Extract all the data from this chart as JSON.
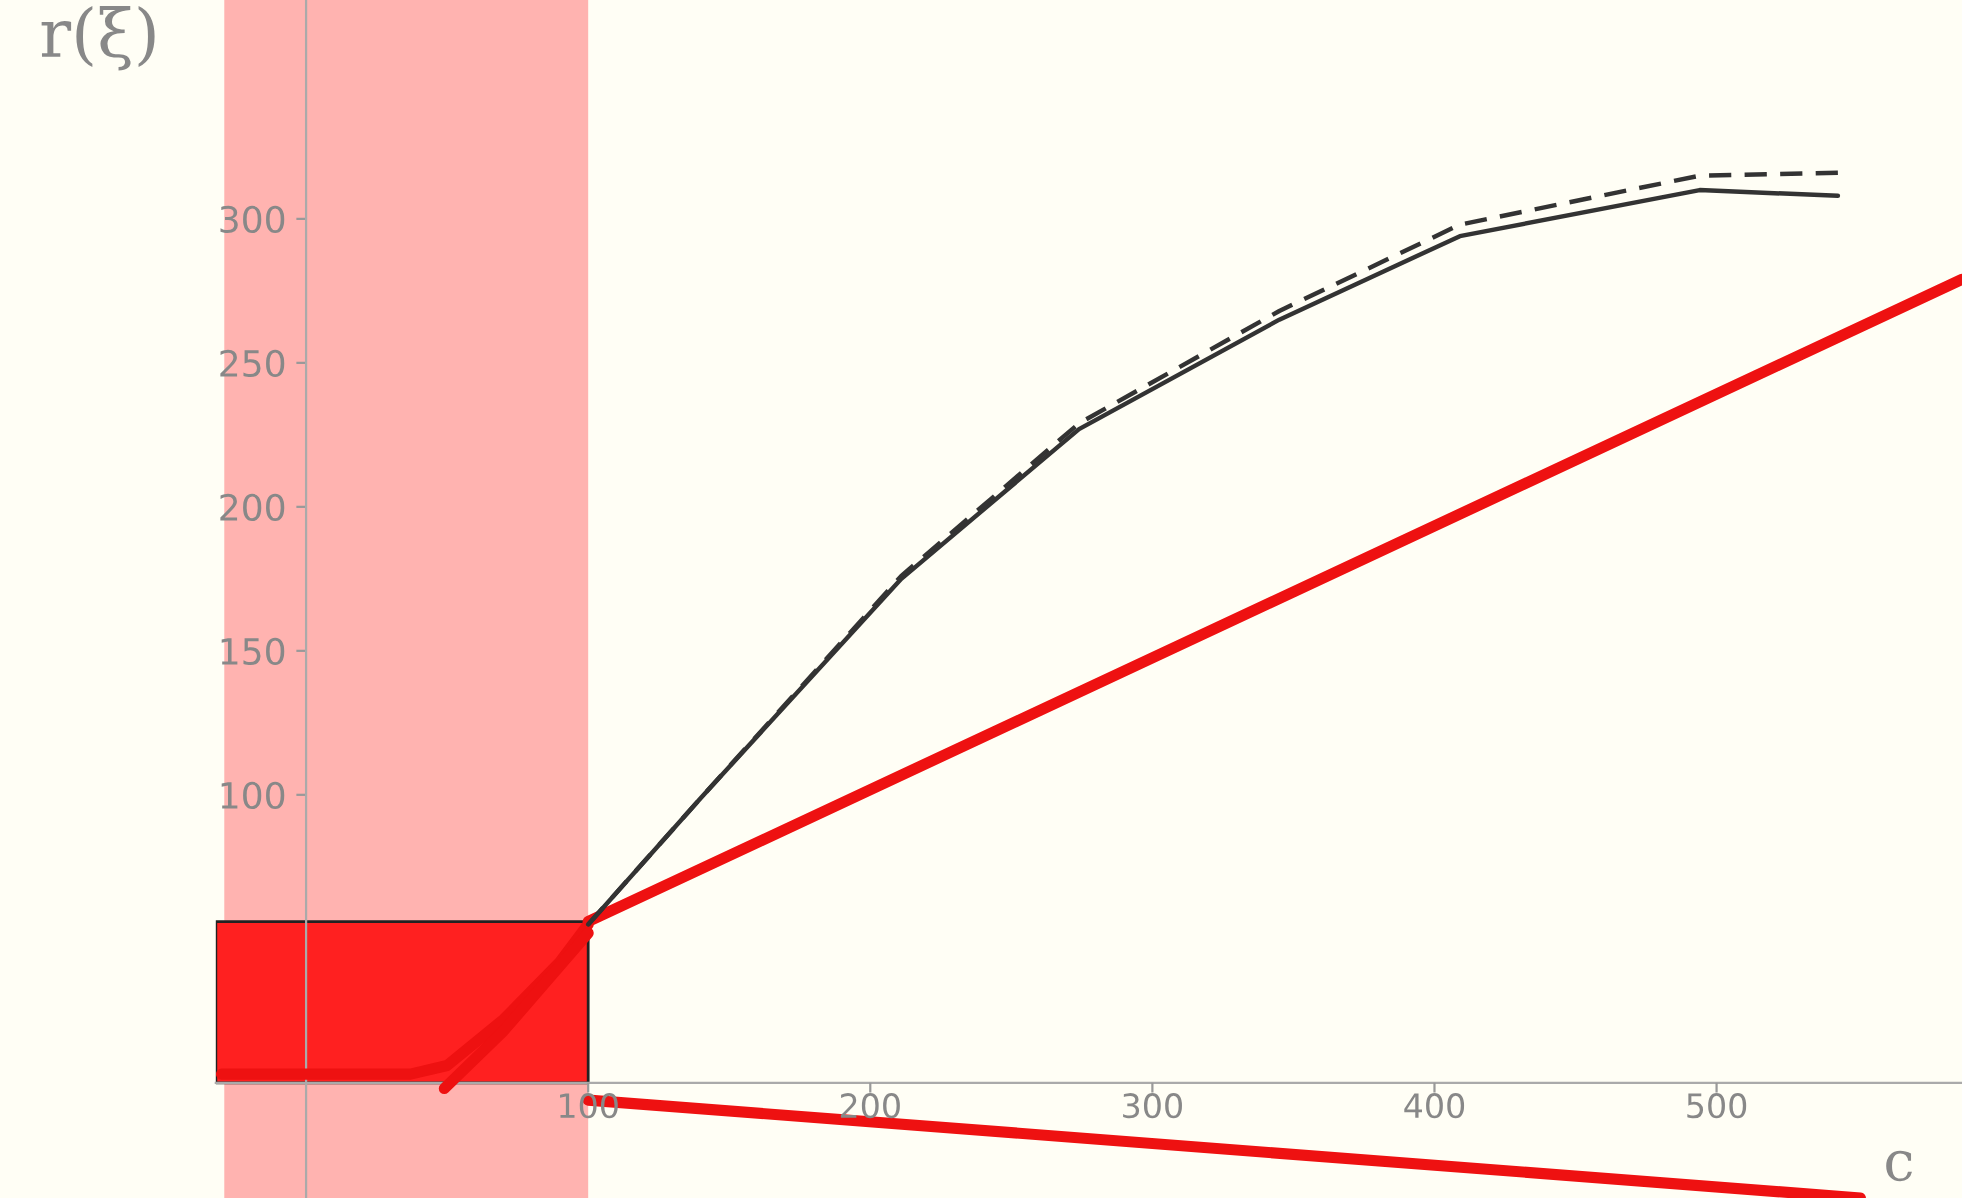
{
  "chart_data": {
    "type": "line",
    "ylabel": "r(ξ)",
    "xlabel": "c",
    "xlim": [
      -32,
      587
    ],
    "ylim": [
      -40,
      376
    ],
    "xticks": [
      100,
      200,
      300,
      400,
      500
    ],
    "yticks": [
      100,
      150,
      200,
      250,
      300
    ],
    "grid": false,
    "legend": false,
    "bands": [
      {
        "axis": "x",
        "from": -29,
        "to": 100,
        "color": "#ffb3b0"
      }
    ],
    "series": [
      {
        "type": "area",
        "color": "#ff2020",
        "x": [
          -32,
          100
        ],
        "values": [
          56,
          56
        ]
      },
      {
        "color": "#ee1111",
        "x": [
          100,
          587
        ],
        "values": [
          56,
          279
        ]
      },
      {
        "color": "#ee1111",
        "x": [
          100,
          551
        ],
        "values": [
          -6,
          -40
        ]
      },
      {
        "color": "#ee1111",
        "x": [
          -30,
          37,
          50,
          70,
          90,
          100
        ],
        "values": [
          3,
          3,
          6,
          22,
          42,
          55
        ]
      },
      {
        "color": "#ee1111",
        "x": [
          49,
          70,
          100
        ],
        "values": [
          -2,
          18,
          52
        ]
      },
      {
        "color": "#333333",
        "line_style": "solid",
        "x": [
          100,
          140,
          211,
          274,
          345,
          409,
          494,
          543
        ],
        "values": [
          55,
          99,
          175,
          227,
          265,
          294,
          310,
          308
        ]
      },
      {
        "color": "#333333",
        "line_style": "dashed",
        "x": [
          100,
          140,
          211,
          274,
          345,
          409,
          494,
          543
        ],
        "values": [
          55,
          99,
          176,
          229,
          268,
          298,
          315,
          316
        ]
      }
    ]
  }
}
